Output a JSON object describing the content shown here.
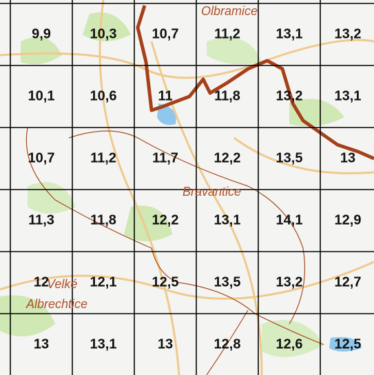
{
  "places": [
    "Olbramice",
    "Bravantice",
    "Velké",
    "Albrechtice"
  ],
  "grid": {
    "rows": [
      [
        "9,9",
        "10,3",
        "10,7",
        "11,2",
        "13,1",
        "13,2"
      ],
      [
        "10,1",
        "10,6",
        "11",
        "11,8",
        "13,2",
        "13,1"
      ],
      [
        "10,7",
        "11,2",
        "11,7",
        "12,2",
        "13,5",
        "13"
      ],
      [
        "11,3",
        "11,8",
        "12,2",
        "13,1",
        "14,1",
        "12,9"
      ],
      [
        "12",
        "12,1",
        "12,5",
        "13,5",
        "13,2",
        "12,7"
      ],
      [
        "13",
        "13,1",
        "13",
        "12,8",
        "12,6",
        "12,5"
      ]
    ]
  }
}
